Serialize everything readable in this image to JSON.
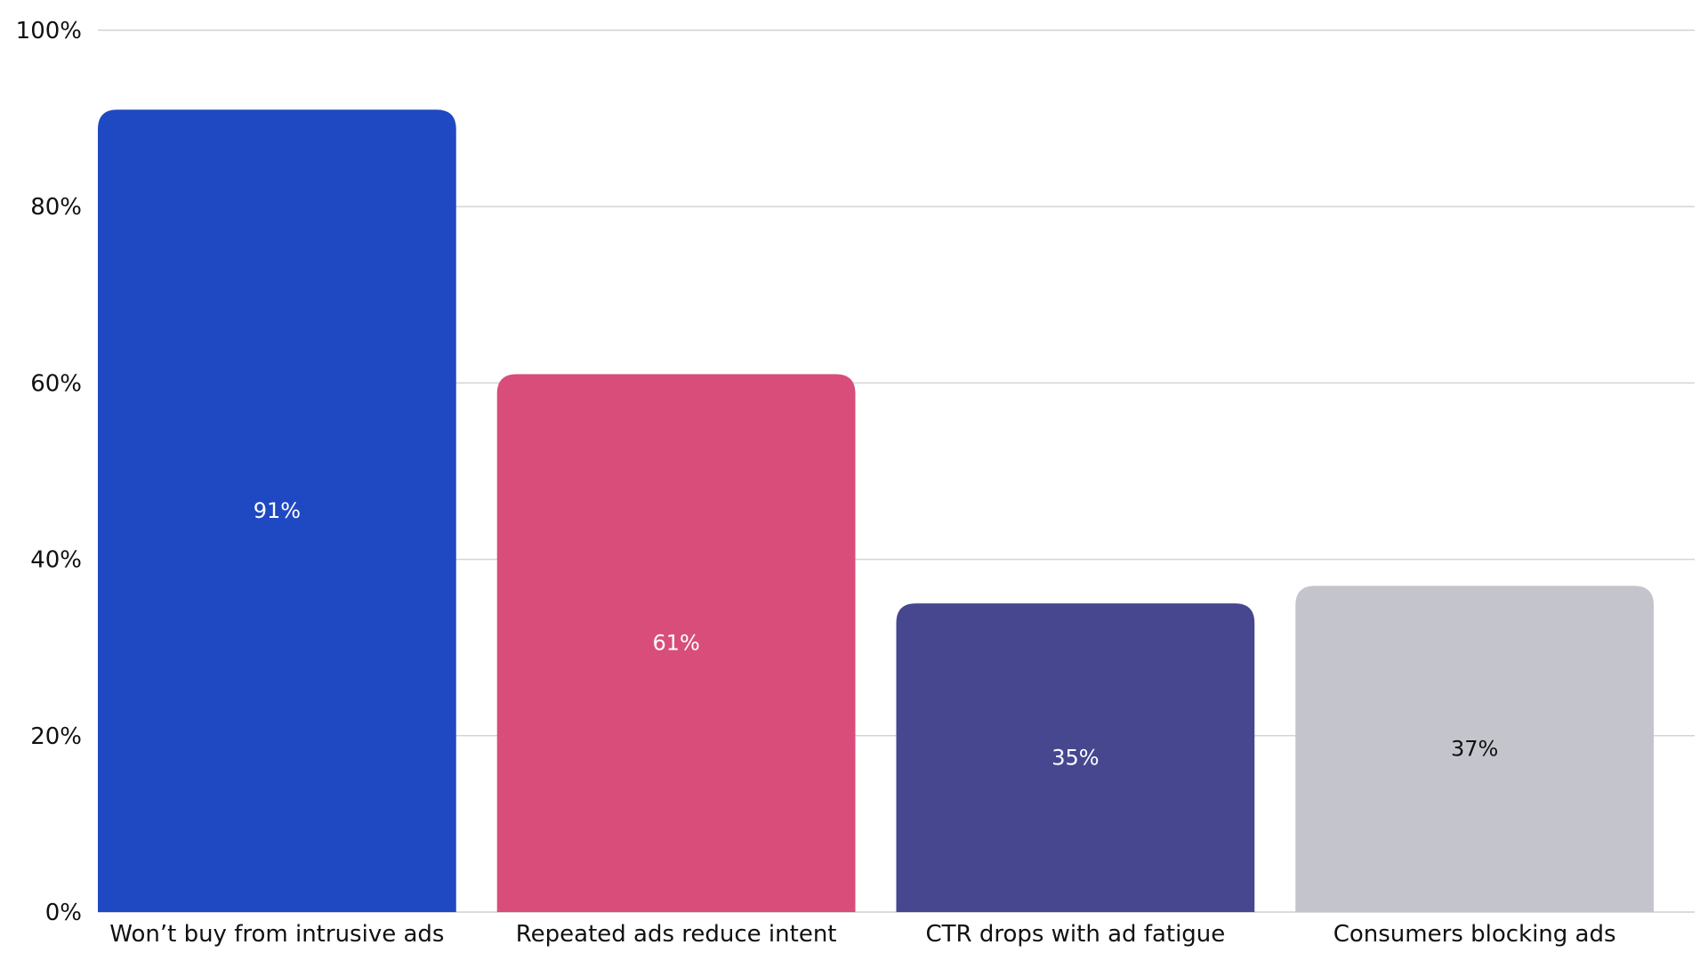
{
  "chart_data": {
    "type": "bar",
    "title": "",
    "xlabel": "",
    "ylabel": "",
    "categories": [
      "Won’t buy from intrusive ads",
      "Repeated ads reduce intent",
      "CTR drops with ad fatigue",
      "Consumers blocking ads"
    ],
    "values": [
      91,
      61,
      35,
      37
    ],
    "data_labels": [
      "91%",
      "61%",
      "35%",
      "37%"
    ],
    "colors": [
      "#1f49c2",
      "#d84d7a",
      "#46478f",
      "#c4c5cc"
    ],
    "label_colors": [
      "#ffffff",
      "#ffffff",
      "#ffffff",
      "#111111"
    ],
    "ylim": [
      0,
      100
    ],
    "yticks": [
      0,
      20,
      40,
      60,
      80,
      100
    ],
    "ytick_labels": [
      "0%",
      "20%",
      "40%",
      "60%",
      "80%",
      "100%"
    ],
    "grid": true,
    "legend": "none"
  }
}
